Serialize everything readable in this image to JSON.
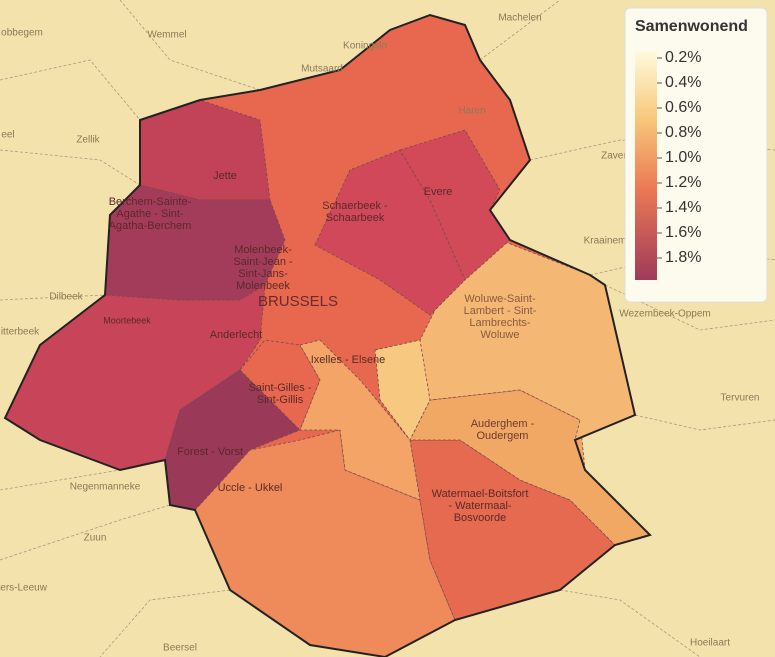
{
  "legend": {
    "title": "Samenwonend",
    "labels": [
      "0.2%",
      "0.4%",
      "0.6%",
      "0.8%",
      "1.0%",
      "1.2%",
      "1.4%",
      "1.6%",
      "1.8%"
    ]
  },
  "surroundings": [
    "obbegem",
    "Wemmel",
    "Machelen",
    "Koningslo",
    "Mutsaard",
    "Zellik",
    "eel",
    "Dilbeek",
    "itterbeek",
    "Zaven",
    "Kraainem",
    "Wezembeek-Oppem",
    "Tervuren",
    "Negenmanneke",
    "Zuun",
    "Pieters-Leeuw",
    "Beersel",
    "Hoeilaart",
    "Haren"
  ],
  "municipalities": [
    "Jette",
    "Berchem-Sainte-Agathe - Sint-Agatha-Berchem",
    "Molenbeek-Saint-Jean - Sint-Jans-Molenbeek",
    "BRUSSELS",
    "Schaerbeek - Schaarbeek",
    "Evere",
    "Woluwe-Saint-Lambert - Sint-Lambrechts-Woluwe",
    "Anderlecht",
    "Moortebeek",
    "Ixelles - Elsene",
    "Saint-Gilles - Sint-Gillis",
    "Forest - Vorst",
    "Auderghem - Oudergem",
    "Uccle - Ukkel",
    "Watermael-Boitsfort - Watermaal-Bosvoorde"
  ]
}
